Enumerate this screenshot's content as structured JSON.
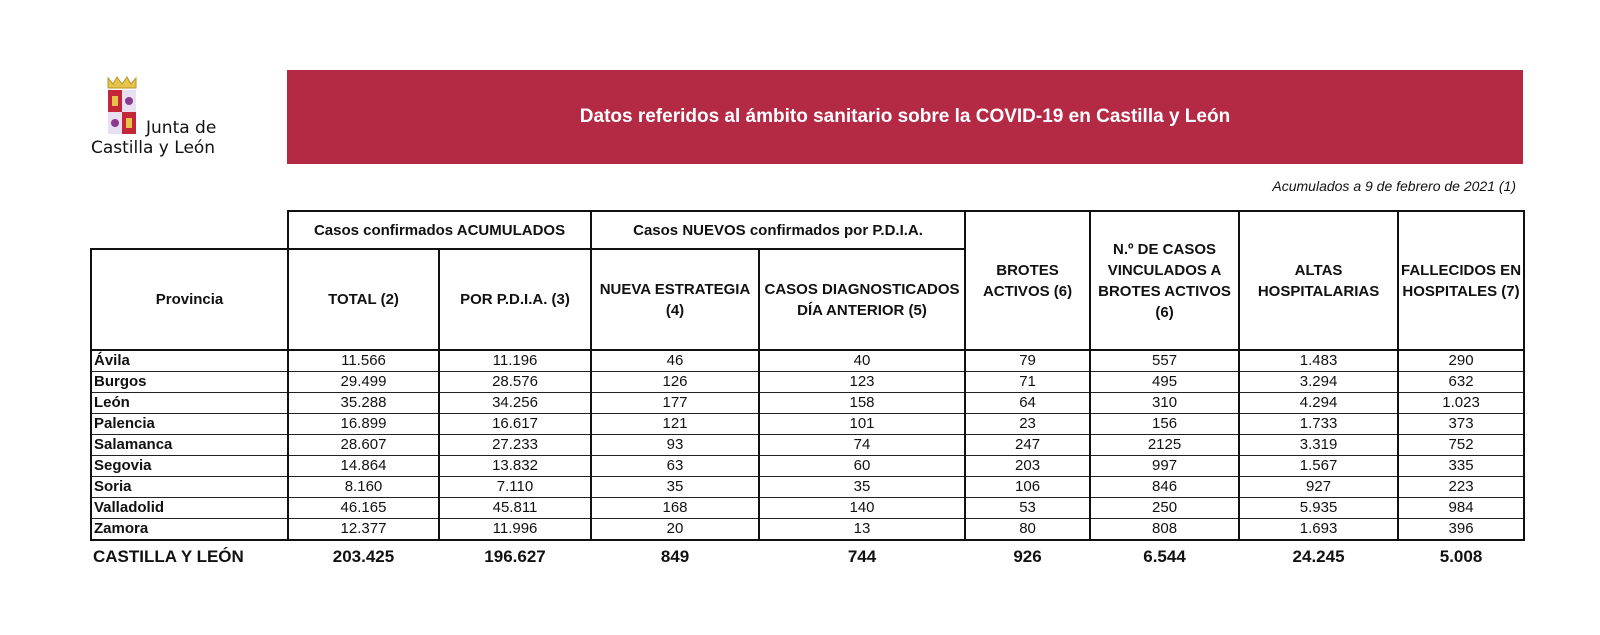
{
  "logo": {
    "line1": "Junta de",
    "line2": "Castilla y León"
  },
  "banner": {
    "title": "Datos referidos al ámbito sanitario sobre la COVID-19 en Castilla y León",
    "color": "#b42a45"
  },
  "date_note": "Acumulados a 9 de febrero de 2021 (1)",
  "table": {
    "groups": {
      "acumulados": "Casos confirmados ACUMULADOS",
      "nuevos": "Casos NUEVOS confirmados por P.D.I.A."
    },
    "headers": [
      "Provincia",
      "TOTAL (2)",
      "POR P.D.I.A. (3)",
      "NUEVA ESTRATEGIA (4)",
      "CASOS DIAGNOSTICADOS DÍA ANTERIOR (5)",
      "BROTES ACTIVOS (6)",
      "N.º DE CASOS VINCULADOS A BROTES ACTIVOS (6)",
      "ALTAS HOSPITALARIAS",
      "FALLECIDOS EN HOSPITALES (7)"
    ],
    "rows": [
      [
        "Ávila",
        "11.566",
        "11.196",
        "46",
        "40",
        "79",
        "557",
        "1.483",
        "290"
      ],
      [
        "Burgos",
        "29.499",
        "28.576",
        "126",
        "123",
        "71",
        "495",
        "3.294",
        "632"
      ],
      [
        "León",
        "35.288",
        "34.256",
        "177",
        "158",
        "64",
        "310",
        "4.294",
        "1.023"
      ],
      [
        "Palencia",
        "16.899",
        "16.617",
        "121",
        "101",
        "23",
        "156",
        "1.733",
        "373"
      ],
      [
        "Salamanca",
        "28.607",
        "27.233",
        "93",
        "74",
        "247",
        "2125",
        "3.319",
        "752"
      ],
      [
        "Segovia",
        "14.864",
        "13.832",
        "63",
        "60",
        "203",
        "997",
        "1.567",
        "335"
      ],
      [
        "Soria",
        "8.160",
        "7.110",
        "35",
        "35",
        "106",
        "846",
        "927",
        "223"
      ],
      [
        "Valladolid",
        "46.165",
        "45.811",
        "168",
        "140",
        "53",
        "250",
        "5.935",
        "984"
      ],
      [
        "Zamora",
        "12.377",
        "11.996",
        "20",
        "13",
        "80",
        "808",
        "1.693",
        "396"
      ]
    ],
    "total": [
      "CASTILLA Y LEÓN",
      "203.425",
      "196.627",
      "849",
      "744",
      "926",
      "6.544",
      "24.245",
      "5.008"
    ]
  }
}
